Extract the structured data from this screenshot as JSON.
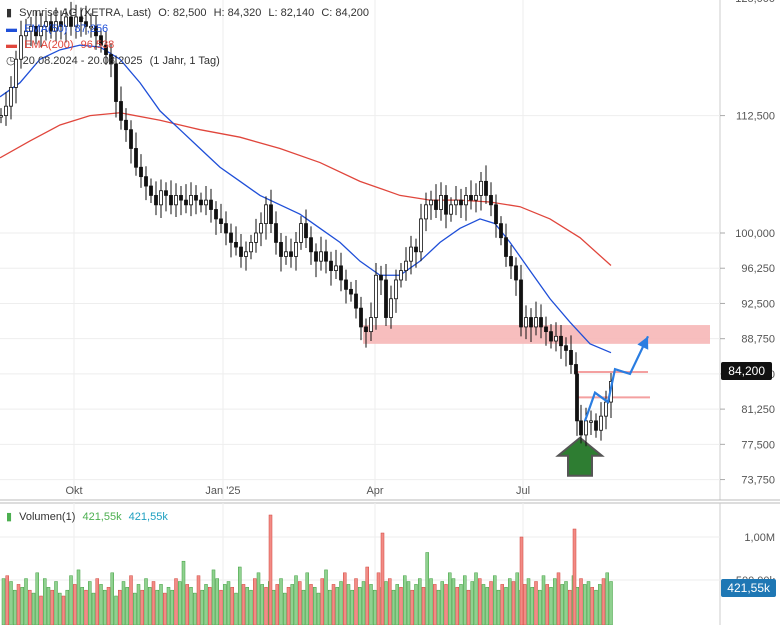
{
  "header": {
    "symbol_line": {
      "name": "Symrise AG (XETRA, Last)",
      "o_label": "O: 82,500",
      "h_label": "H: 84,320",
      "l_label": "L: 82,140",
      "c_label": "C: 84,200"
    },
    "ema50": {
      "label": "EMA(50)",
      "value": "87,256",
      "color": "#1f4fd8"
    },
    "ema200": {
      "label": "EMA(200)",
      "value": "96,538",
      "color": "#e0463c"
    },
    "range": {
      "label": "20.08.2024 - 20.08.2025",
      "detail": "(1 Jahr, 1 Tag)"
    }
  },
  "volume_header": {
    "label": "Volumen(1)",
    "value1": "421,55k",
    "value2": "421,55k"
  },
  "price_tag": "84,200",
  "volume_tag": "421,55k",
  "chart_data": {
    "type": "candlestick",
    "price_axis": {
      "ticks": [
        "125,000",
        "112,500",
        "100,000",
        "96,250",
        "92,500",
        "88,750",
        "85,000",
        "81,250",
        "77,500",
        "73,750"
      ],
      "ylim": [
        72,
        128
      ]
    },
    "x_axis": {
      "ticks": [
        "Okt",
        "Jan '25",
        "Apr",
        "Jul"
      ]
    },
    "volume_axis": {
      "ticks": [
        "1,00M",
        "500,00k"
      ]
    },
    "close_series": [
      [
        0,
        112.5
      ],
      [
        5,
        113.5
      ],
      [
        10,
        115.5
      ],
      [
        15,
        118.5
      ],
      [
        20,
        121
      ],
      [
        25,
        121.5
      ],
      [
        30,
        122
      ],
      [
        35,
        121
      ],
      [
        40,
        122
      ],
      [
        45,
        122.5
      ],
      [
        50,
        121.5
      ],
      [
        55,
        122.5
      ],
      [
        60,
        122
      ],
      [
        65,
        123
      ],
      [
        70,
        122
      ],
      [
        75,
        123
      ],
      [
        80,
        122.5
      ],
      [
        85,
        122
      ],
      [
        90,
        122
      ],
      [
        95,
        121
      ],
      [
        100,
        120
      ],
      [
        105,
        119
      ],
      [
        110,
        118
      ],
      [
        115,
        114
      ],
      [
        120,
        112
      ],
      [
        125,
        111
      ],
      [
        130,
        109
      ],
      [
        135,
        107
      ],
      [
        140,
        106
      ],
      [
        145,
        105
      ],
      [
        150,
        104
      ],
      [
        155,
        103
      ],
      [
        160,
        104.5
      ],
      [
        165,
        104
      ],
      [
        170,
        103
      ],
      [
        175,
        104
      ],
      [
        180,
        103.5
      ],
      [
        185,
        103
      ],
      [
        190,
        104
      ],
      [
        195,
        103.5
      ],
      [
        200,
        103
      ],
      [
        205,
        103.5
      ],
      [
        210,
        102.5
      ],
      [
        215,
        101.5
      ],
      [
        220,
        101
      ],
      [
        225,
        100
      ],
      [
        230,
        99
      ],
      [
        235,
        98.5
      ],
      [
        240,
        97.5
      ],
      [
        245,
        98
      ],
      [
        250,
        99
      ],
      [
        255,
        100
      ],
      [
        260,
        101
      ],
      [
        265,
        103
      ],
      [
        270,
        101
      ],
      [
        275,
        99
      ],
      [
        280,
        97.5
      ],
      [
        285,
        98
      ],
      [
        290,
        97.5
      ],
      [
        295,
        99
      ],
      [
        300,
        101
      ],
      [
        305,
        99.5
      ],
      [
        310,
        98
      ],
      [
        315,
        97
      ],
      [
        320,
        98
      ],
      [
        325,
        97
      ],
      [
        330,
        96
      ],
      [
        335,
        96.5
      ],
      [
        340,
        95
      ],
      [
        345,
        94
      ],
      [
        350,
        93.5
      ],
      [
        355,
        92
      ],
      [
        360,
        90
      ],
      [
        365,
        89.5
      ],
      [
        370,
        91
      ],
      [
        375,
        95.5
      ],
      [
        380,
        95
      ],
      [
        385,
        91
      ],
      [
        390,
        93
      ],
      [
        395,
        95
      ],
      [
        400,
        96
      ],
      [
        405,
        97
      ],
      [
        410,
        98.5
      ],
      [
        415,
        98
      ],
      [
        420,
        101.5
      ],
      [
        425,
        103
      ],
      [
        430,
        103.5
      ],
      [
        435,
        102.5
      ],
      [
        440,
        104
      ],
      [
        445,
        102
      ],
      [
        450,
        103
      ],
      [
        455,
        103.5
      ],
      [
        460,
        103
      ],
      [
        465,
        104
      ],
      [
        470,
        103.5
      ],
      [
        475,
        104
      ],
      [
        480,
        105.5
      ],
      [
        485,
        104
      ],
      [
        490,
        103
      ],
      [
        495,
        101
      ],
      [
        500,
        99.5
      ],
      [
        505,
        97.5
      ],
      [
        510,
        96.5
      ],
      [
        515,
        95
      ],
      [
        520,
        90
      ],
      [
        525,
        91
      ],
      [
        530,
        90
      ],
      [
        535,
        91
      ],
      [
        540,
        90
      ],
      [
        545,
        89.5
      ],
      [
        550,
        88.5
      ],
      [
        555,
        89
      ],
      [
        560,
        88
      ],
      [
        565,
        87.5
      ],
      [
        570,
        86
      ],
      [
        575,
        85
      ],
      [
        576,
        80
      ],
      [
        580,
        78.5
      ],
      [
        585,
        80
      ],
      [
        590,
        80
      ],
      [
        595,
        79
      ],
      [
        600,
        80.5
      ],
      [
        605,
        82
      ],
      [
        610,
        84.2
      ]
    ],
    "ema50": [
      [
        0,
        114.5
      ],
      [
        20,
        116
      ],
      [
        40,
        118.5
      ],
      [
        60,
        119.5
      ],
      [
        80,
        120
      ],
      [
        100,
        119.8
      ],
      [
        120,
        118.5
      ],
      [
        140,
        116
      ],
      [
        160,
        113
      ],
      [
        180,
        111
      ],
      [
        200,
        109
      ],
      [
        220,
        107
      ],
      [
        240,
        105.5
      ],
      [
        260,
        104
      ],
      [
        280,
        103
      ],
      [
        300,
        102
      ],
      [
        320,
        100.5
      ],
      [
        340,
        99
      ],
      [
        360,
        97
      ],
      [
        380,
        95.5
      ],
      [
        400,
        95.5
      ],
      [
        420,
        97
      ],
      [
        440,
        99
      ],
      [
        460,
        100.5
      ],
      [
        480,
        101.5
      ],
      [
        495,
        101
      ],
      [
        510,
        99
      ],
      [
        530,
        96
      ],
      [
        550,
        93
      ],
      [
        570,
        90.5
      ],
      [
        590,
        88.2
      ],
      [
        611,
        87.256
      ]
    ],
    "ema200": [
      [
        0,
        108
      ],
      [
        30,
        109.8
      ],
      [
        60,
        111.5
      ],
      [
        90,
        112.5
      ],
      [
        120,
        112.8
      ],
      [
        160,
        112
      ],
      [
        200,
        111
      ],
      [
        240,
        110.2
      ],
      [
        280,
        109
      ],
      [
        320,
        107.5
      ],
      [
        360,
        105.5
      ],
      [
        400,
        104
      ],
      [
        430,
        103.5
      ],
      [
        460,
        103.5
      ],
      [
        490,
        103.3
      ],
      [
        520,
        102.8
      ],
      [
        550,
        101.5
      ],
      [
        580,
        99.5
      ],
      [
        611,
        96.538
      ]
    ],
    "annotations": [
      {
        "type": "zone",
        "y": [
          88.2,
          90.2
        ],
        "x": [
          363,
          710
        ]
      },
      {
        "type": "level",
        "y": 85.2,
        "x": [
          574,
          648
        ]
      },
      {
        "type": "level",
        "y": 82.5,
        "x": [
          576,
          650
        ]
      },
      {
        "type": "projection",
        "points": [
          [
            585,
            80
          ],
          [
            595,
            83
          ],
          [
            608,
            82
          ],
          [
            615,
            85.5
          ],
          [
            630,
            85
          ],
          [
            648,
            89
          ]
        ]
      },
      {
        "type": "up-arrow",
        "x": 580,
        "y": 76.5
      }
    ],
    "volume": [
      16,
      17,
      15,
      12,
      14,
      13,
      16,
      12,
      11,
      18,
      10,
      16,
      13,
      12,
      15,
      11,
      10,
      12,
      17,
      14,
      19,
      13,
      12,
      15,
      11,
      16,
      14,
      12,
      13,
      18,
      10,
      12,
      15,
      13,
      17,
      11,
      14,
      12,
      16,
      13,
      15,
      12,
      14,
      11,
      13,
      12,
      16,
      15,
      22,
      14,
      13,
      11,
      17,
      12,
      14,
      13,
      19,
      16,
      12,
      14,
      15,
      13,
      11,
      20,
      14,
      13,
      12,
      16,
      18,
      14,
      13,
      15,
      12,
      14,
      16,
      11,
      13,
      14,
      17,
      15,
      12,
      18,
      14,
      13,
      11,
      16,
      19,
      12,
      14,
      13,
      15,
      18,
      14,
      12,
      16,
      13,
      15,
      20,
      14,
      12,
      18,
      13,
      15,
      16,
      12,
      14,
      13,
      17,
      15,
      12,
      14,
      16,
      13,
      25,
      16,
      14,
      12,
      15,
      14,
      18,
      16,
      13,
      14,
      17,
      12,
      15,
      18,
      16,
      14,
      13,
      15,
      17,
      12,
      14,
      13,
      16,
      15,
      18,
      12,
      14,
      16,
      13,
      15,
      12,
      17,
      14,
      13,
      16,
      18,
      14,
      15,
      12,
      17,
      13,
      16,
      14,
      15,
      13,
      12,
      14,
      16,
      18,
      15
    ]
  }
}
